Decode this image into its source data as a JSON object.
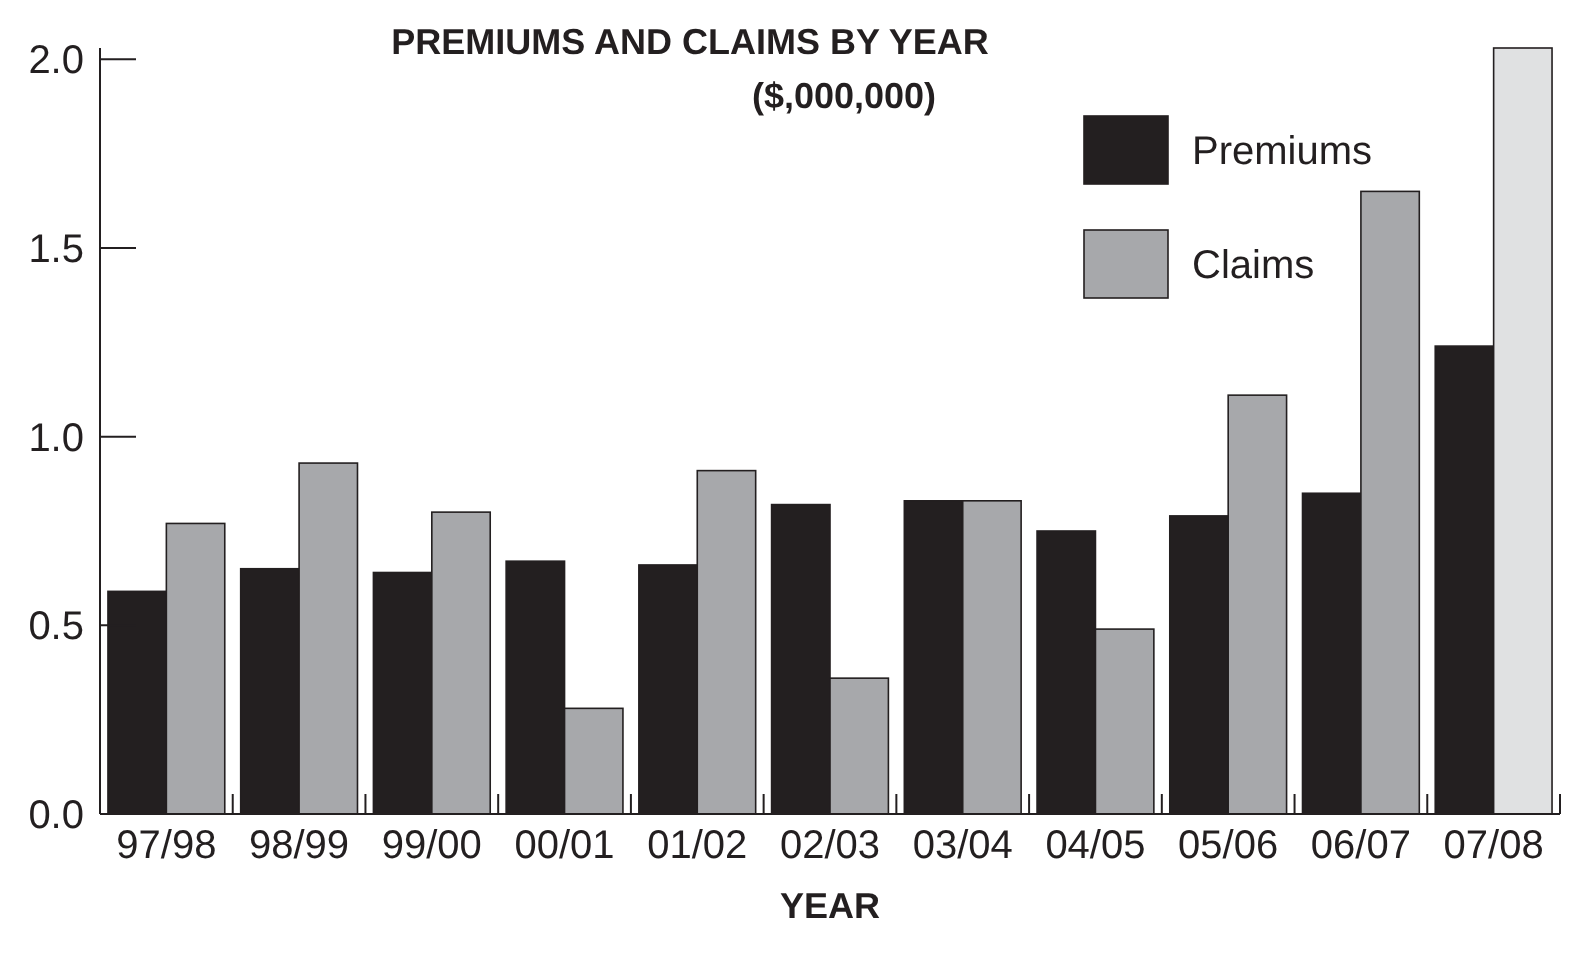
{
  "chart_data": {
    "type": "bar",
    "title": "PREMIUMS AND CLAIMS BY YEAR",
    "subtitle": "($,000,000)",
    "xlabel": "YEAR",
    "categories": [
      "97/98",
      "98/99",
      "99/00",
      "00/01",
      "01/02",
      "02/03",
      "03/04",
      "04/05",
      "05/06",
      "06/07",
      "07/08"
    ],
    "series": [
      {
        "name": "Premiums",
        "color": "#231f20",
        "values": [
          0.59,
          0.65,
          0.64,
          0.67,
          0.66,
          0.82,
          0.83,
          0.75,
          0.79,
          0.85,
          1.24
        ]
      },
      {
        "name": "Claims",
        "color": "#a7a8ab",
        "colors": [
          "#a7a8ab",
          "#a7a8ab",
          "#a7a8ab",
          "#a7a8ab",
          "#a7a8ab",
          "#a7a8ab",
          "#a7a8ab",
          "#a7a8ab",
          "#a7a8ab",
          "#a7a8ab",
          "#e0e1e2"
        ],
        "values": [
          0.77,
          0.93,
          0.8,
          0.28,
          0.91,
          0.36,
          0.83,
          0.49,
          1.11,
          1.65,
          2.03
        ]
      }
    ],
    "ylim": [
      0,
      2.03
    ],
    "yticks": [
      {
        "value": 0,
        "label": "0.0"
      },
      {
        "value": 0.5,
        "label": "0.5"
      },
      {
        "value": 1,
        "label": "1.0"
      },
      {
        "value": 1.5,
        "label": "1.5"
      },
      {
        "value": 2,
        "label": "2.0"
      }
    ],
    "grid": false,
    "legend": "top right"
  }
}
